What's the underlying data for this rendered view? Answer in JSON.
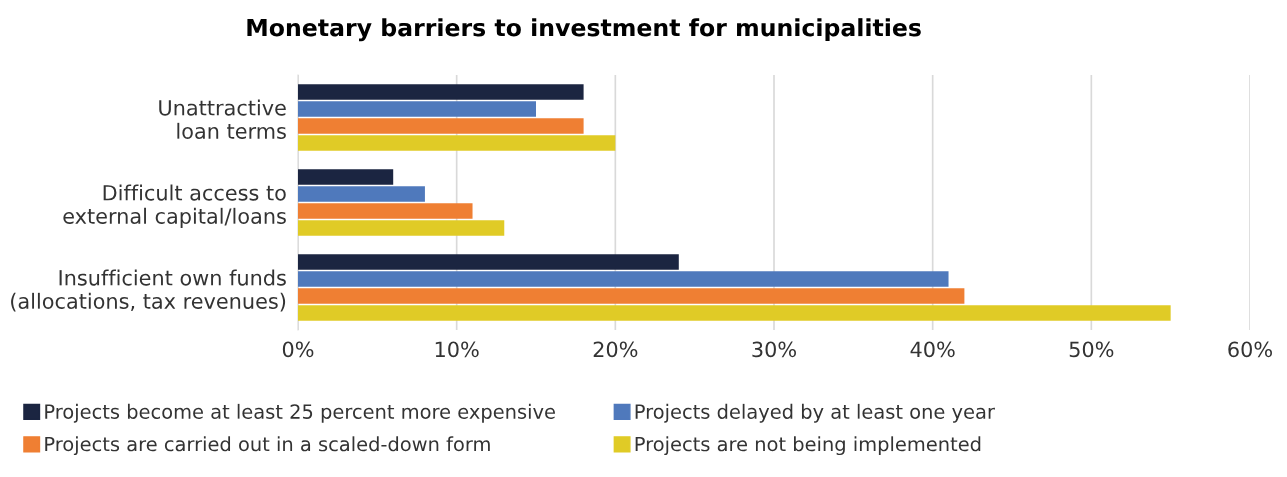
{
  "chart_data": {
    "type": "bar",
    "orientation": "horizontal",
    "title": "Monetary barriers to investment for municipalities",
    "categories": [
      "Unattractive\nloan terms",
      "Difficult access to\nexternal capital/loans",
      "Insufficient own funds\n(allocations, tax revenues)"
    ],
    "series": [
      {
        "name": "Projects become at least 25 percent more expensive",
        "color": "#1b2541",
        "values": [
          18,
          6,
          24
        ]
      },
      {
        "name": "Projects delayed by at least one year",
        "color": "#4f79bc",
        "values": [
          15,
          8,
          41
        ]
      },
      {
        "name": "Projects are carried out in a scaled-down form",
        "color": "#ef7f33",
        "values": [
          18,
          11,
          42
        ]
      },
      {
        "name": "Projects are not being implemented",
        "color": "#e0cb26",
        "values": [
          20,
          13,
          55
        ]
      }
    ],
    "xlim": [
      0,
      60
    ],
    "xticks": [
      {
        "value": 0,
        "label": "0%"
      },
      {
        "value": 10,
        "label": "10%"
      },
      {
        "value": 20,
        "label": "20%"
      },
      {
        "value": 30,
        "label": "30%"
      },
      {
        "value": 40,
        "label": "40%"
      },
      {
        "value": 50,
        "label": "50%"
      },
      {
        "value": 60,
        "label": "60%"
      }
    ],
    "grid": "x",
    "legend": "bottom"
  }
}
